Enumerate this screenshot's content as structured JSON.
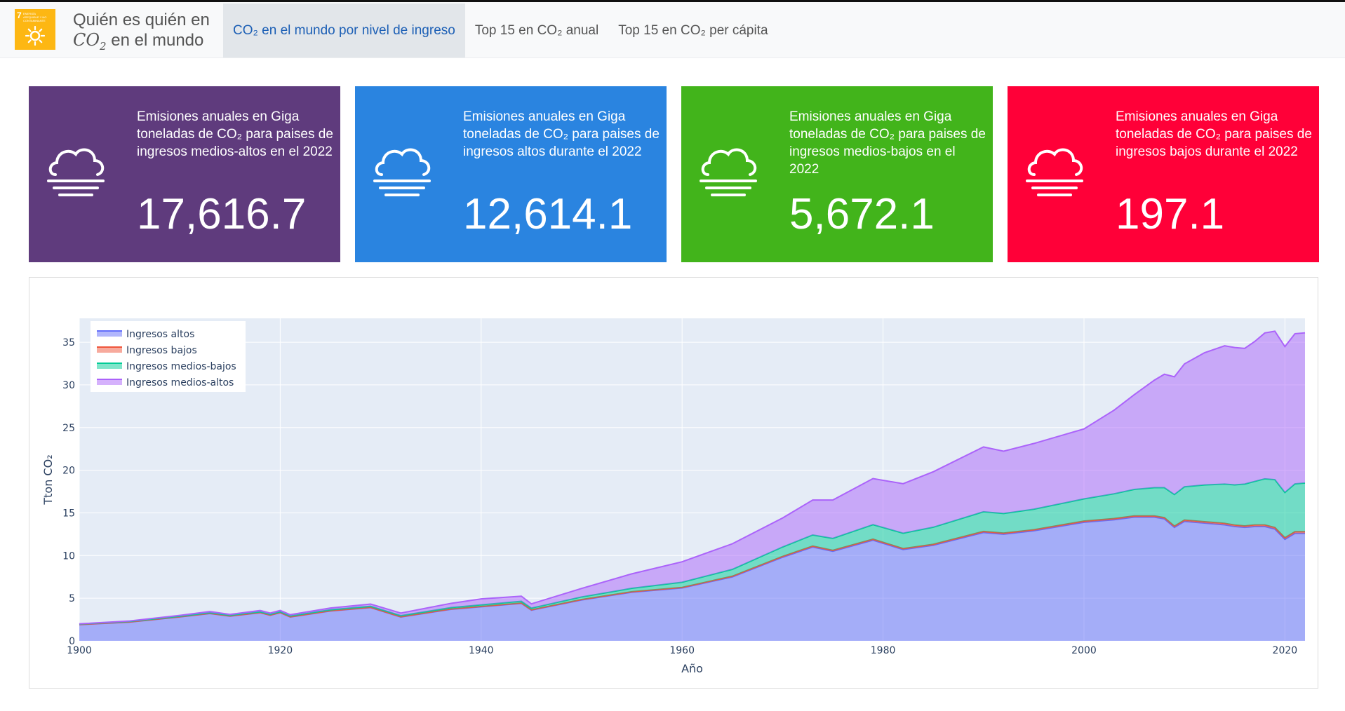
{
  "app": {
    "title_line1": "Quién es quién en",
    "title_co2": "CO",
    "title_co2_sub": "2",
    "title_rest": " en el mundo",
    "logo_number": "7",
    "logo_text": "ENERGÍA ASEQUIBLE Y NO CONTAMINANTE"
  },
  "nav": {
    "tabs": [
      {
        "label": "CO₂ en el mundo por nivel de ingreso",
        "active": true
      },
      {
        "label": "Top 15 en CO₂ anual",
        "active": false
      },
      {
        "label": "Top 15 en CO₂ per cápita",
        "active": false
      }
    ]
  },
  "cards": [
    {
      "description": "Emisiones anuales en Giga toneladas de CO₂ para paises de ingresos medios-altos en el 2022",
      "value": "17,616.7",
      "color": "#5f3b7d",
      "icon": "fog-cloud-icon"
    },
    {
      "description": "Emisiones anuales en Giga toneladas de CO₂ para paises de ingresos altos durante el 2022",
      "value": "12,614.1",
      "color": "#2a84e0",
      "icon": "fog-cloud-icon"
    },
    {
      "description": "Emisiones anuales en Giga toneladas de CO₂ para paises de ingresos medios-bajos en el 2022",
      "value": "5,672.1",
      "color": "#42b41b",
      "icon": "fog-cloud-icon"
    },
    {
      "description": "Emisiones anuales en Giga toneladas de CO₂ para paises de ingresos bajos durante el 2022",
      "value": "197.1",
      "color": "#ff0038",
      "icon": "fog-cloud-icon"
    }
  ],
  "chart_data": {
    "type": "area",
    "stacked": true,
    "xlabel": "Año",
    "ylabel": "Tton CO₂",
    "xlim": [
      1900,
      2022
    ],
    "ylim": [
      0,
      37.8
    ],
    "xticks": [
      1900,
      1920,
      1940,
      1960,
      1980,
      2000,
      2020
    ],
    "yticks": [
      0,
      5,
      10,
      15,
      20,
      25,
      30,
      35
    ],
    "legend_position": "top-left",
    "grid": true,
    "x": [
      1900,
      1905,
      1910,
      1913,
      1915,
      1918,
      1919,
      1920,
      1921,
      1925,
      1929,
      1932,
      1937,
      1940,
      1944,
      1945,
      1950,
      1955,
      1960,
      1965,
      1970,
      1973,
      1975,
      1979,
      1982,
      1985,
      1990,
      1992,
      1995,
      2000,
      2003,
      2005,
      2007,
      2008,
      2009,
      2010,
      2012,
      2014,
      2015,
      2016,
      2017,
      2018,
      2019,
      2020,
      2021,
      2022
    ],
    "series": [
      {
        "name": "Ingresos altos",
        "color": "#636efa",
        "values": [
          1.9,
          2.2,
          2.8,
          3.2,
          2.9,
          3.3,
          3.0,
          3.3,
          2.8,
          3.5,
          3.9,
          2.8,
          3.7,
          4.0,
          4.4,
          3.6,
          4.8,
          5.7,
          6.2,
          7.5,
          9.8,
          11.0,
          10.5,
          11.8,
          10.7,
          11.2,
          12.7,
          12.5,
          12.9,
          13.9,
          14.2,
          14.5,
          14.5,
          14.3,
          13.3,
          14.0,
          13.8,
          13.6,
          13.4,
          13.3,
          13.4,
          13.4,
          13.1,
          11.9,
          12.6,
          12.6
        ]
      },
      {
        "name": "Ingresos bajos",
        "color": "#ef553b",
        "values": [
          0.02,
          0.02,
          0.02,
          0.02,
          0.02,
          0.02,
          0.02,
          0.02,
          0.02,
          0.03,
          0.03,
          0.03,
          0.04,
          0.04,
          0.04,
          0.04,
          0.05,
          0.06,
          0.07,
          0.08,
          0.1,
          0.11,
          0.11,
          0.12,
          0.12,
          0.12,
          0.13,
          0.13,
          0.13,
          0.14,
          0.14,
          0.15,
          0.15,
          0.15,
          0.15,
          0.16,
          0.17,
          0.18,
          0.18,
          0.18,
          0.19,
          0.19,
          0.19,
          0.19,
          0.2,
          0.2
        ]
      },
      {
        "name": "Ingresos medios-bajos",
        "color": "#00cc96",
        "values": [
          0.05,
          0.06,
          0.07,
          0.08,
          0.08,
          0.09,
          0.09,
          0.1,
          0.1,
          0.12,
          0.13,
          0.13,
          0.16,
          0.18,
          0.2,
          0.2,
          0.3,
          0.4,
          0.6,
          0.8,
          1.1,
          1.3,
          1.4,
          1.7,
          1.8,
          2.0,
          2.3,
          2.3,
          2.4,
          2.6,
          2.9,
          3.1,
          3.3,
          3.5,
          3.7,
          3.9,
          4.3,
          4.6,
          4.7,
          4.9,
          5.1,
          5.4,
          5.6,
          5.3,
          5.6,
          5.7
        ]
      },
      {
        "name": "Ingresos medios-altos",
        "color": "#ab63fa",
        "values": [
          0.03,
          0.05,
          0.1,
          0.14,
          0.1,
          0.15,
          0.15,
          0.15,
          0.15,
          0.2,
          0.25,
          0.3,
          0.5,
          0.7,
          0.6,
          0.5,
          1.0,
          1.7,
          2.4,
          3.0,
          3.4,
          4.1,
          4.5,
          5.4,
          5.8,
          6.5,
          7.6,
          7.3,
          7.7,
          8.2,
          9.8,
          11.1,
          12.6,
          13.3,
          13.8,
          14.4,
          15.5,
          16.2,
          16.1,
          15.9,
          16.4,
          17.1,
          17.4,
          17.1,
          17.6,
          17.6
        ]
      }
    ]
  }
}
